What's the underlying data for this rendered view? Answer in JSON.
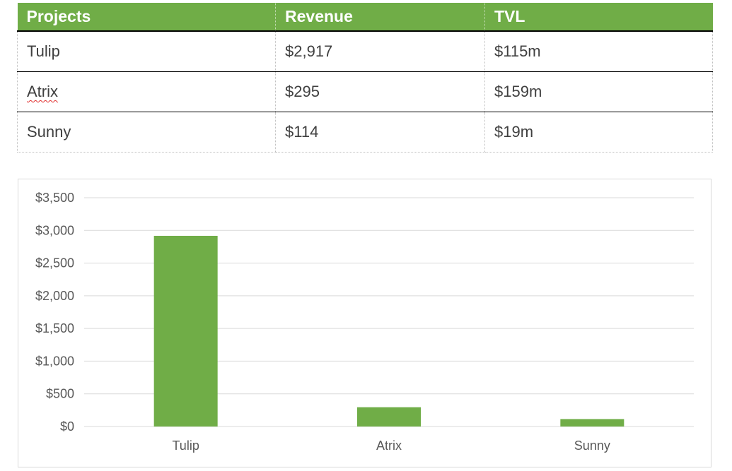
{
  "table": {
    "headers": [
      "Projects",
      "Revenue",
      "TVL"
    ],
    "rows": [
      [
        "Tulip",
        "$2,917",
        "$115m"
      ],
      [
        "Atrix",
        "$295",
        "$159m"
      ],
      [
        "Sunny",
        "$114",
        "$19m"
      ]
    ],
    "colors": {
      "header_bg": "#70ad47",
      "header_text": "#ffffff"
    }
  },
  "chart_data": {
    "type": "bar",
    "categories": [
      "Tulip",
      "Atrix",
      "Sunny"
    ],
    "values": [
      2917,
      295,
      114
    ],
    "title": "",
    "xlabel": "",
    "ylabel": "",
    "ylim": [
      0,
      3500
    ],
    "yticks": [
      0,
      500,
      1000,
      1500,
      2000,
      2500,
      3000,
      3500
    ],
    "ytick_labels": [
      "$0",
      "$500",
      "$1,000",
      "$1,500",
      "$2,000",
      "$2,500",
      "$3,000",
      "$3,500"
    ],
    "grid": true,
    "legend": "none",
    "bar_color": "#70ad47"
  }
}
